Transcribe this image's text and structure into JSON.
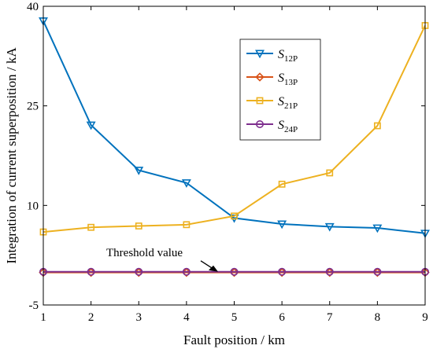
{
  "chart_data": {
    "type": "line",
    "xlabel": "Fault position / km",
    "ylabel": "Integration of current superposition / kA",
    "xlim": [
      1,
      9
    ],
    "ylim": [
      -5,
      40
    ],
    "xticks": [
      "1",
      "2",
      "3",
      "4",
      "5",
      "6",
      "7",
      "8",
      "9"
    ],
    "yticks": [
      "-5",
      "10",
      "25",
      "40"
    ],
    "x": [
      1,
      2,
      3,
      4,
      5,
      6,
      7,
      8,
      9
    ],
    "series": [
      {
        "name": "S",
        "sub": "12P",
        "color": "#0072BD",
        "marker": "triangle-down",
        "values": [
          37.8,
          22.1,
          15.3,
          13.4,
          8.1,
          7.2,
          6.8,
          6.6,
          5.8
        ]
      },
      {
        "name": "S",
        "sub": "13P",
        "color": "#D95319",
        "marker": "diamond",
        "values": [
          -0.1,
          -0.1,
          -0.1,
          -0.1,
          -0.1,
          -0.1,
          -0.1,
          -0.1,
          -0.1
        ]
      },
      {
        "name": "S",
        "sub": "21P",
        "color": "#EDB120",
        "marker": "square",
        "values": [
          6.0,
          6.7,
          6.9,
          7.1,
          8.4,
          13.2,
          14.9,
          22.0,
          37.1
        ]
      },
      {
        "name": "S",
        "sub": "24P",
        "color": "#7E2F8E",
        "marker": "circle",
        "values": [
          0.0,
          0.0,
          0.0,
          0.0,
          0.0,
          0.0,
          0.0,
          0.0,
          0.0
        ]
      }
    ],
    "threshold": {
      "label": "Threshold value",
      "value": 0.0,
      "color": "#000000"
    },
    "legend_position": "top-right",
    "grid": false
  }
}
